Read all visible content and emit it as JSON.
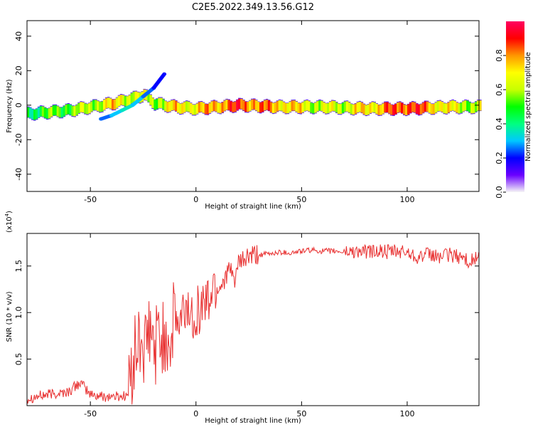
{
  "title": "C2E5.2022.349.13.56.G12",
  "chart_data": [
    {
      "type": "heatmap",
      "xlabel": "Height of straight line (km)",
      "ylabel": "Frequency (Hz)",
      "xlim": [
        -80,
        134
      ],
      "ylim": [
        -50,
        49
      ],
      "xticks": [
        -50,
        0,
        50,
        100
      ],
      "yticks": [
        -40,
        -20,
        0,
        20,
        40
      ],
      "colorbar": {
        "label": "Normalized spectral amplitude",
        "range": [
          0,
          1
        ],
        "ticks": [
          "0.0",
          "0.2",
          "0.4",
          "0.6",
          "0.8"
        ],
        "colormap": "rainbow",
        "stops": [
          "#f6f6f6",
          "#6a00ff",
          "#0000ff",
          "#00c8ff",
          "#00ff80",
          "#00ff00",
          "#c8ff00",
          "#ffff00",
          "#ff9600",
          "#ff0000",
          "#ff0060"
        ]
      },
      "ridge": {
        "x": [
          -80,
          -70,
          -60,
          -50,
          -40,
          -30,
          -25,
          -20,
          -10,
          0,
          10,
          20,
          40,
          60,
          80,
          100,
          120,
          134
        ],
        "freq": [
          -5,
          -4,
          -3,
          -1,
          1,
          4,
          6,
          1,
          -1,
          -2,
          -1,
          0,
          -1,
          -1,
          -2,
          -2,
          -1,
          -1
        ],
        "amplitude": [
          0.45,
          0.5,
          0.55,
          0.6,
          0.7,
          0.65,
          0.6,
          0.6,
          0.7,
          0.7,
          0.8,
          0.85,
          0.75,
          0.6,
          0.7,
          0.9,
          0.65,
          0.6
        ]
      },
      "secondary_branch": {
        "x": [
          -45,
          -40,
          -35,
          -30,
          -25,
          -20,
          -15
        ],
        "freq": [
          -8,
          -6,
          -3,
          0,
          5,
          10,
          18
        ],
        "amplitude": [
          0.2,
          0.25,
          0.3,
          0.35,
          0.3,
          0.25,
          0.2
        ]
      }
    },
    {
      "type": "line",
      "xlabel": "Height of straight line (km)",
      "ylabel": "SNR (10 * v/v)",
      "scale_label": "(x10",
      "scale_exponent": "4",
      "scale_close": ")",
      "xlim": [
        -80,
        134
      ],
      "ylim": [
        0,
        1.85
      ],
      "xticks": [
        -50,
        0,
        50,
        100
      ],
      "yticks": [
        "0.5",
        "1.0",
        "1.5"
      ],
      "ytick_values": [
        0.5,
        1.0,
        1.5
      ],
      "series": [
        {
          "color": "#e83030",
          "x": [
            -80,
            -70,
            -60,
            -55,
            -50,
            -45,
            -40,
            -35,
            -32,
            -30,
            -28,
            -26,
            -24,
            -22,
            -20,
            -18,
            -16,
            -14,
            -12,
            -10,
            -8,
            -6,
            -4,
            -2,
            0,
            2,
            4,
            6,
            8,
            10,
            12,
            14,
            16,
            18,
            20,
            22,
            25,
            28,
            30,
            35,
            40,
            45,
            50,
            55,
            60,
            65,
            70,
            75,
            80,
            85,
            90,
            95,
            100,
            105,
            110,
            115,
            120,
            125,
            130,
            134
          ],
          "y": [
            0.08,
            0.12,
            0.15,
            0.25,
            0.12,
            0.1,
            0.1,
            0.1,
            0.12,
            0.45,
            0.6,
            0.7,
            0.55,
            0.8,
            0.6,
            0.75,
            0.7,
            0.8,
            0.65,
            1.0,
            0.8,
            1.0,
            1.05,
            0.95,
            1.05,
            1.0,
            1.15,
            1.1,
            1.3,
            1.25,
            1.3,
            1.4,
            1.45,
            1.35,
            1.5,
            1.55,
            1.6,
            1.6,
            1.62,
            1.63,
            1.65,
            1.64,
            1.66,
            1.67,
            1.66,
            1.66,
            1.65,
            1.66,
            1.65,
            1.66,
            1.65,
            1.65,
            1.65,
            1.6,
            1.62,
            1.6,
            1.62,
            1.6,
            1.55,
            1.6
          ],
          "noise_band": [
            {
              "from": -80,
              "to": -32,
              "amp": 0.06
            },
            {
              "from": -32,
              "to": -10,
              "amp": 0.45
            },
            {
              "from": -10,
              "to": 10,
              "amp": 0.3
            },
            {
              "from": 10,
              "to": 30,
              "amp": 0.12
            },
            {
              "from": 30,
              "to": 70,
              "amp": 0.03
            },
            {
              "from": 70,
              "to": 134,
              "amp": 0.08
            }
          ]
        }
      ]
    }
  ]
}
